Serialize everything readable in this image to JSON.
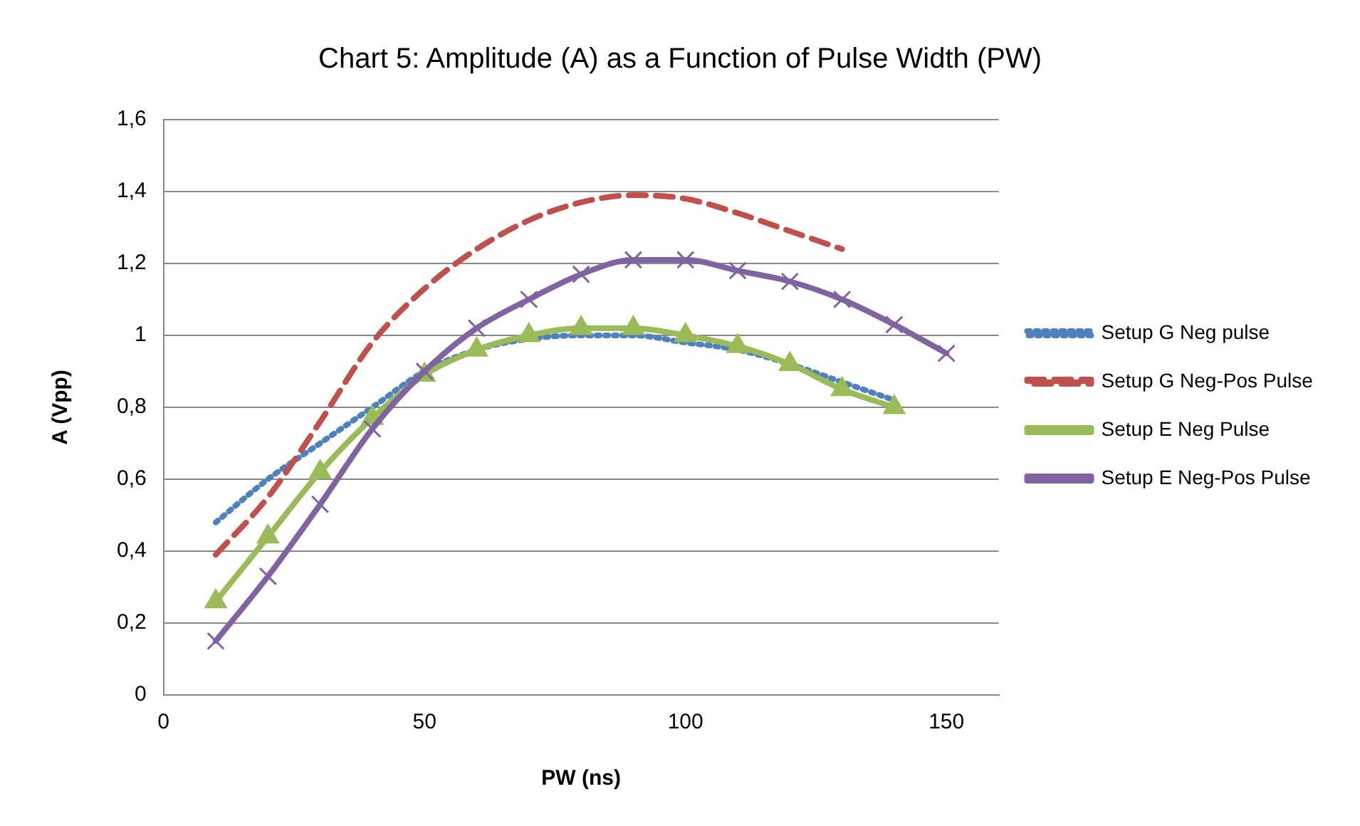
{
  "chart_data": {
    "type": "line",
    "title": "Chart 5: Amplitude (A) as a Function of Pulse Width (PW)",
    "xlabel": "PW (ns)",
    "ylabel": "A (Vpp)",
    "x": [
      10,
      20,
      30,
      40,
      50,
      60,
      70,
      80,
      90,
      100,
      110,
      120,
      130,
      140,
      150
    ],
    "series": [
      {
        "name": "Setup G Neg pulse",
        "color": "#4f81bd",
        "line_style": "dotted",
        "marker": "none",
        "values": [
          0.48,
          0.6,
          0.7,
          0.8,
          0.9,
          0.96,
          0.99,
          1.0,
          1.0,
          0.98,
          0.96,
          0.92,
          0.87,
          0.82,
          null
        ]
      },
      {
        "name": "Setup G Neg-Pos Pulse",
        "color": "#c0504d",
        "line_style": "dashed",
        "marker": "none",
        "values": [
          0.39,
          0.55,
          0.76,
          0.98,
          1.13,
          1.24,
          1.32,
          1.37,
          1.39,
          1.38,
          1.34,
          1.29,
          1.24,
          null,
          null
        ]
      },
      {
        "name": "Setup E Neg Pulse",
        "color": "#9bbb59",
        "line_style": "solid",
        "marker": "triangle",
        "values": [
          0.26,
          0.44,
          0.62,
          0.77,
          0.89,
          0.96,
          1.0,
          1.02,
          1.02,
          1.0,
          0.97,
          0.92,
          0.85,
          0.8,
          null
        ]
      },
      {
        "name": "Setup E Neg-Pos Pulse",
        "color": "#8064a2",
        "line_style": "solid",
        "marker": "cross",
        "values": [
          0.15,
          0.33,
          0.53,
          0.74,
          0.9,
          1.02,
          1.1,
          1.17,
          1.21,
          1.21,
          1.18,
          1.15,
          1.1,
          1.03,
          0.95
        ]
      }
    ],
    "xlim": [
      0,
      160
    ],
    "xticks": [
      0,
      50,
      100,
      150
    ],
    "ylim": [
      0,
      1.6
    ],
    "yticks": [
      0,
      {
        "value": 0.2,
        "label": "0,2"
      },
      {
        "value": 0.4,
        "label": "0,4"
      },
      {
        "value": 0.6,
        "label": "0,6"
      },
      {
        "value": 0.8,
        "label": "0,8"
      },
      1,
      {
        "value": 1.2,
        "label": "1,2"
      },
      {
        "value": 1.4,
        "label": "1,4"
      },
      {
        "value": 1.6,
        "label": "1,6"
      }
    ],
    "grid": "y",
    "legend": "right"
  }
}
